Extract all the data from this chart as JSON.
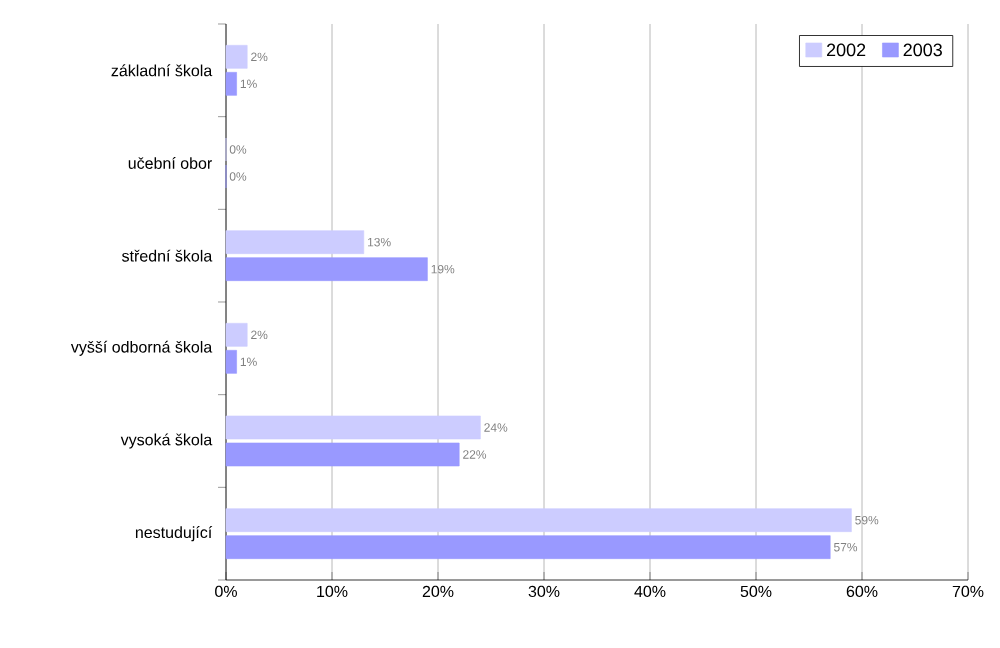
{
  "chart_data": {
    "type": "bar",
    "orientation": "horizontal",
    "categories": [
      "základní škola",
      "učební obor",
      "střední škola",
      "vyšší odborná škola",
      "vysoká škola",
      "nestudující"
    ],
    "series": [
      {
        "name": "2002",
        "color": "#ccccff",
        "values": [
          2,
          0,
          13,
          2,
          24,
          59
        ],
        "value_labels": [
          "2%",
          "0%",
          "13%",
          "2%",
          "24%",
          "59%"
        ]
      },
      {
        "name": "2003",
        "color": "#9999ff",
        "values": [
          1,
          0,
          19,
          1,
          22,
          57
        ],
        "value_labels": [
          "1%",
          "0%",
          "19%",
          "1%",
          "22%",
          "57%"
        ]
      }
    ],
    "xlim": [
      0,
      70
    ],
    "xticks": [
      {
        "value": 0,
        "label": "0%"
      },
      {
        "value": 10,
        "label": "10%"
      },
      {
        "value": 20,
        "label": "20%"
      },
      {
        "value": 30,
        "label": "30%"
      },
      {
        "value": 40,
        "label": "40%"
      },
      {
        "value": 50,
        "label": "50%"
      },
      {
        "value": 60,
        "label": "60%"
      },
      {
        "value": 70,
        "label": "70%"
      }
    ],
    "grid": "x",
    "legend": "top right"
  }
}
